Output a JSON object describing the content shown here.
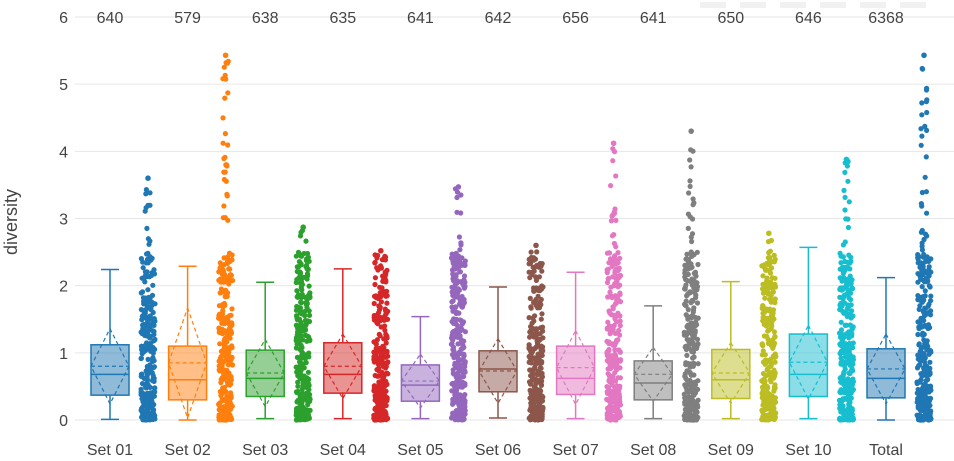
{
  "chart_data": {
    "type": "box",
    "ylabel": "diversity",
    "ylim": [
      0,
      6
    ],
    "yticks": [
      0,
      1,
      2,
      3,
      4,
      5,
      6
    ],
    "grid": true,
    "show_mean_sd": true,
    "show_points": true,
    "categories": [
      "Set 01",
      "Set 02",
      "Set 03",
      "Set 04",
      "Set 05",
      "Set 06",
      "Set 07",
      "Set 08",
      "Set 09",
      "Set 10",
      "Total"
    ],
    "counts": [
      "640",
      "579",
      "638",
      "635",
      "641",
      "642",
      "656",
      "641",
      "650",
      "646",
      "6368"
    ],
    "colors": [
      "#1f77b4",
      "#ff7f0e",
      "#2ca02c",
      "#d62728",
      "#9467bd",
      "#8c564b",
      "#e377c2",
      "#7f7f7f",
      "#bcbd22",
      "#17becf",
      "#1f77b4"
    ],
    "series": [
      {
        "category": "Set 01",
        "min": 0.01,
        "q1": 0.37,
        "median": 0.68,
        "q3": 1.12,
        "max": 2.24,
        "mean": 0.8,
        "sd": 0.56,
        "point_max": 3.6
      },
      {
        "category": "Set 02",
        "min": 0.0,
        "q1": 0.3,
        "median": 0.6,
        "q3": 1.1,
        "max": 2.29,
        "mean": 0.85,
        "sd": 0.82,
        "point_max": 5.43
      },
      {
        "category": "Set 03",
        "min": 0.02,
        "q1": 0.35,
        "median": 0.62,
        "q3": 1.04,
        "max": 2.05,
        "mean": 0.7,
        "sd": 0.5,
        "point_max": 2.87
      },
      {
        "category": "Set 04",
        "min": 0.02,
        "q1": 0.4,
        "median": 0.68,
        "q3": 1.15,
        "max": 2.25,
        "mean": 0.8,
        "sd": 0.48,
        "point_max": 2.52
      },
      {
        "category": "Set 05",
        "min": 0.02,
        "q1": 0.28,
        "median": 0.52,
        "q3": 0.82,
        "max": 1.54,
        "mean": 0.58,
        "sd": 0.4,
        "point_max": 3.47
      },
      {
        "category": "Set 06",
        "min": 0.03,
        "q1": 0.42,
        "median": 0.76,
        "q3": 1.03,
        "max": 1.98,
        "mean": 0.73,
        "sd": 0.48,
        "point_max": 2.6
      },
      {
        "category": "Set 07",
        "min": 0.02,
        "q1": 0.38,
        "median": 0.62,
        "q3": 1.1,
        "max": 2.2,
        "mean": 0.78,
        "sd": 0.55,
        "point_max": 4.12
      },
      {
        "category": "Set 08",
        "min": 0.02,
        "q1": 0.3,
        "median": 0.55,
        "q3": 0.88,
        "max": 1.7,
        "mean": 0.68,
        "sd": 0.4,
        "point_max": 4.3
      },
      {
        "category": "Set 09",
        "min": 0.02,
        "q1": 0.32,
        "median": 0.6,
        "q3": 1.05,
        "max": 2.06,
        "mean": 0.7,
        "sd": 0.45,
        "point_max": 2.78
      },
      {
        "category": "Set 10",
        "min": 0.02,
        "q1": 0.35,
        "median": 0.68,
        "q3": 1.28,
        "max": 2.57,
        "mean": 0.86,
        "sd": 0.55,
        "point_max": 3.88
      },
      {
        "category": "Total",
        "min": 0.0,
        "q1": 0.33,
        "median": 0.62,
        "q3": 1.06,
        "max": 2.12,
        "mean": 0.76,
        "sd": 0.52,
        "point_max": 5.43
      }
    ]
  }
}
